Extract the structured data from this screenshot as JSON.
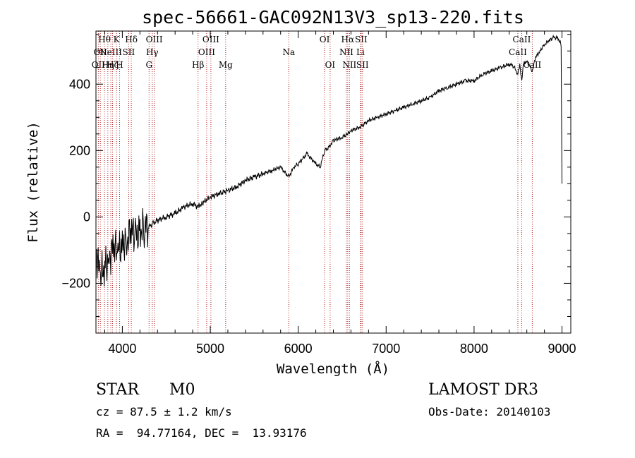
{
  "chart_data": {
    "type": "line",
    "title": "spec-56661-GAC092N13V3_sp13-220.fits",
    "xlabel": "Wavelength (Å)",
    "ylabel": "Flux (relative)",
    "xlim": [
      3700,
      9100
    ],
    "ylim": [
      -350,
      560
    ],
    "x_ticks": [
      4000,
      5000,
      6000,
      7000,
      8000,
      9000
    ],
    "x_tick_labels": [
      "4000",
      "5000",
      "6000",
      "7000",
      "8000",
      "9000"
    ],
    "y_ticks": [
      -200,
      0,
      200,
      400
    ],
    "y_tick_labels": [
      "−200",
      "0",
      "200",
      "400"
    ],
    "series": [
      {
        "name": "spectrum",
        "x": [
          3700,
          3750,
          3800,
          3850,
          3900,
          3950,
          4000,
          4050,
          4100,
          4150,
          4200,
          4250,
          4300,
          4350,
          4400,
          4500,
          4600,
          4700,
          4800,
          4861,
          4900,
          5000,
          5100,
          5200,
          5300,
          5400,
          5500,
          5600,
          5700,
          5800,
          5893,
          5950,
          6000,
          6100,
          6200,
          6250,
          6300,
          6350,
          6400,
          6500,
          6563,
          6600,
          6700,
          6800,
          6900,
          7000,
          7100,
          7200,
          7300,
          7400,
          7500,
          7600,
          7700,
          7800,
          7900,
          8000,
          8100,
          8200,
          8300,
          8400,
          8450,
          8498,
          8520,
          8542,
          8560,
          8600,
          8662,
          8700,
          8750,
          8800,
          8850,
          8900,
          8950,
          8990,
          9000
        ],
        "y": [
          -100,
          -180,
          -150,
          -120,
          -90,
          -110,
          -80,
          -70,
          -40,
          -60,
          -40,
          -30,
          -30,
          -20,
          -10,
          0,
          10,
          30,
          40,
          30,
          40,
          60,
          70,
          80,
          90,
          110,
          120,
          130,
          140,
          150,
          120,
          150,
          160,
          190,
          160,
          150,
          200,
          210,
          230,
          240,
          250,
          260,
          270,
          290,
          300,
          310,
          320,
          330,
          340,
          350,
          360,
          380,
          390,
          400,
          410,
          410,
          430,
          440,
          450,
          460,
          455,
          430,
          460,
          410,
          460,
          470,
          440,
          480,
          500,
          520,
          530,
          540,
          540,
          520,
          100
        ]
      }
    ],
    "emission_lines": [
      {
        "wavelength": 3727,
        "row": 2,
        "label": "OII"
      },
      {
        "wavelength": 3750,
        "row": 1,
        "label": "OII"
      },
      {
        "wavelength": 3797,
        "row": 0,
        "label": "Hθ"
      },
      {
        "wavelength": 3835,
        "row": 2,
        "label": "Hη"
      },
      {
        "wavelength": 3869,
        "row": 1,
        "label": "NeIII"
      },
      {
        "wavelength": 3889,
        "row": 2,
        "label": "Hζ"
      },
      {
        "wavelength": 3934,
        "row": 0,
        "label": "K"
      },
      {
        "wavelength": 3969,
        "row": 2,
        "label": "H"
      },
      {
        "wavelength": 4072,
        "row": 1,
        "label": "SII"
      },
      {
        "wavelength": 4102,
        "row": 0,
        "label": "Hδ"
      },
      {
        "wavelength": 4304,
        "row": 2,
        "label": "G"
      },
      {
        "wavelength": 4340,
        "row": 1,
        "label": "Hγ"
      },
      {
        "wavelength": 4363,
        "row": 0,
        "label": "OIII"
      },
      {
        "wavelength": 4861,
        "row": 2,
        "label": "Hβ"
      },
      {
        "wavelength": 4959,
        "row": 1,
        "label": "OIII"
      },
      {
        "wavelength": 5007,
        "row": 0,
        "label": "OIII"
      },
      {
        "wavelength": 5175,
        "row": 2,
        "label": "Mg"
      },
      {
        "wavelength": 5893,
        "row": 1,
        "label": "Na"
      },
      {
        "wavelength": 6300,
        "row": 0,
        "label": "OI"
      },
      {
        "wavelength": 6363,
        "row": 2,
        "label": "OI"
      },
      {
        "wavelength": 6548,
        "row": 1,
        "label": "NII"
      },
      {
        "wavelength": 6563,
        "row": 0,
        "label": "Hα"
      },
      {
        "wavelength": 6583,
        "row": 2,
        "label": "NII"
      },
      {
        "wavelength": 6708,
        "row": 1,
        "label": "Li"
      },
      {
        "wavelength": 6716,
        "row": 0,
        "label": "SII"
      },
      {
        "wavelength": 6731,
        "row": 2,
        "label": "SII"
      },
      {
        "wavelength": 8498,
        "row": 1,
        "label": "CaII"
      },
      {
        "wavelength": 8542,
        "row": 0,
        "label": "CaII"
      },
      {
        "wavelength": 8662,
        "row": 2,
        "label": "CaII"
      }
    ]
  },
  "info": {
    "class": "STAR",
    "subclass": "M0",
    "survey": "LAMOST DR3",
    "cz": "cz = 87.5 ± 1.2 km/s",
    "obs_date": "Obs-Date: 20140103",
    "coords": "RA =  94.77164, DEC =  13.93176"
  }
}
